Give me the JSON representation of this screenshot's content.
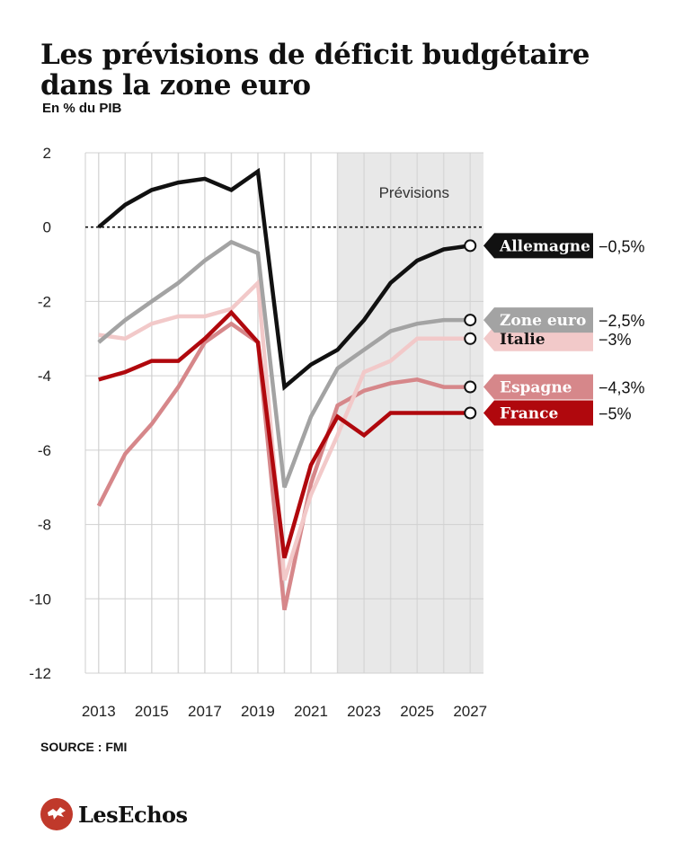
{
  "header": {
    "title": "Les prévisions de déficit budgétaire dans la zone euro",
    "subtitle": "En % du PIB"
  },
  "footer": {
    "source": "SOURCE : FMI",
    "logo_text": "LesEchos"
  },
  "chart_data": {
    "type": "line",
    "title": "Les prévisions de déficit budgétaire dans la zone euro",
    "ylabel": "En % du PIB",
    "xlim": [
      2012.5,
      2027.5
    ],
    "ylim": [
      -12,
      2
    ],
    "yticks": [
      2,
      0,
      -2,
      -4,
      -6,
      -8,
      -10,
      -12
    ],
    "ytick_labels": [
      "2",
      "0",
      "-2",
      "-4",
      "-6",
      "-8",
      "-10",
      "-12"
    ],
    "xticks": [
      2013,
      2015,
      2017,
      2019,
      2021,
      2023,
      2025,
      2027
    ],
    "xtick_labels": [
      "2013",
      "2015",
      "2017",
      "2019",
      "2021",
      "2023",
      "2025",
      "2027"
    ],
    "forecast_region": {
      "from": 2022,
      "to": 2027.5,
      "label": "Prévisions"
    },
    "reference_line": 0,
    "x": [
      2013,
      2014,
      2015,
      2016,
      2017,
      2018,
      2019,
      2020,
      2021,
      2022,
      2023,
      2024,
      2025,
      2026,
      2027
    ],
    "series": [
      {
        "name": "Espagne",
        "label": "−4,3%",
        "color": "#d6878a",
        "text_color": "#ffffff",
        "values": [
          -7.5,
          -6.1,
          -5.3,
          -4.3,
          -3.1,
          -2.6,
          -3.1,
          -10.3,
          -6.9,
          -4.8,
          -4.4,
          -4.2,
          -4.1,
          -4.3,
          -4.3
        ]
      },
      {
        "name": "Italie",
        "label": "−3%",
        "color": "#f2c9c9",
        "text_color": "#111111",
        "values": [
          -2.9,
          -3.0,
          -2.6,
          -2.4,
          -2.4,
          -2.2,
          -1.5,
          -9.5,
          -7.2,
          -5.6,
          -3.9,
          -3.6,
          -3.0,
          -3.0,
          -3.0
        ]
      },
      {
        "name": "Zone euro",
        "label": "−2,5%",
        "color": "#a3a3a3",
        "text_color": "#ffffff",
        "values": [
          -3.1,
          -2.5,
          -2.0,
          -1.5,
          -0.9,
          -0.4,
          -0.7,
          -7.0,
          -5.1,
          -3.8,
          -3.3,
          -2.8,
          -2.6,
          -2.5,
          -2.5
        ]
      },
      {
        "name": "France",
        "label": "−5%",
        "color": "#b0080d",
        "text_color": "#ffffff",
        "values": [
          -4.1,
          -3.9,
          -3.6,
          -3.6,
          -3.0,
          -2.3,
          -3.1,
          -8.9,
          -6.4,
          -5.1,
          -5.6,
          -5.0,
          -5.0,
          -5.0,
          -5.0
        ]
      },
      {
        "name": "Allemagne",
        "label": "−0,5%",
        "color": "#111111",
        "text_color": "#ffffff",
        "values": [
          0.0,
          0.6,
          1.0,
          1.2,
          1.3,
          1.0,
          1.5,
          -4.3,
          -3.7,
          -3.3,
          -2.5,
          -1.5,
          -0.9,
          -0.6,
          -0.5
        ]
      }
    ]
  }
}
